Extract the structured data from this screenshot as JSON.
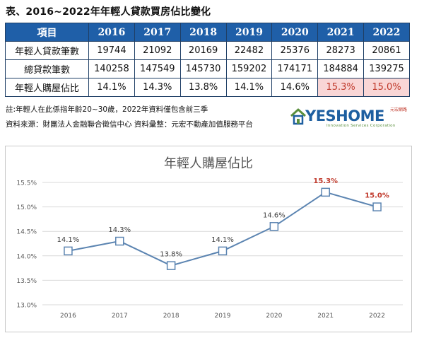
{
  "page_title": "表、2016~2022年年輕人貸款買房佔比變化",
  "table": {
    "header": [
      "項目",
      "2016",
      "2017",
      "2018",
      "2019",
      "2020",
      "2021",
      "2022"
    ],
    "rows": [
      {
        "label": "年輕人貸款筆數",
        "values": [
          "19744",
          "21092",
          "20169",
          "22482",
          "25376",
          "28273",
          "20861"
        ]
      },
      {
        "label": "總貸款筆數",
        "values": [
          "140258",
          "147549",
          "145730",
          "159202",
          "174171",
          "184884",
          "139275"
        ]
      },
      {
        "label": "年輕人購屋佔比",
        "values": [
          "14.1%",
          "14.3%",
          "13.8%",
          "14.1%",
          "14.6%",
          "15.3%",
          "15.0%"
        ]
      }
    ],
    "highlight_color": "#f9d6d6"
  },
  "note": "註:年輕人在此係指年齡20~30歲，2022年資料僅包含前三季",
  "source": "資料來源：財團法人金融聯合徵信中心  資料彙整：元宏不動產加值服務平台",
  "logo": {
    "brand": "YESHOME",
    "small_text": "元宏網路",
    "tagline": "Innovation Services Corporation",
    "color": "#1e5fa0",
    "icon": "house-icon"
  },
  "chart_data": {
    "type": "line",
    "title": "年輕人購屋佔比",
    "categories": [
      "2016",
      "2017",
      "2018",
      "2019",
      "2020",
      "2021",
      "2022"
    ],
    "values": [
      14.1,
      14.3,
      13.8,
      14.1,
      14.6,
      15.3,
      15.0
    ],
    "labels": [
      "14.1%",
      "14.3%",
      "13.8%",
      "14.1%",
      "14.6%",
      "15.3%",
      "15.0%"
    ],
    "highlight_index": [
      5,
      6
    ],
    "highlight_color": "#c0392b",
    "ylim": [
      13.0,
      15.5
    ],
    "yticks": [
      "13.0%",
      "13.5%",
      "14.0%",
      "14.5%",
      "15.0%",
      "15.5%"
    ],
    "ytick_values": [
      13.0,
      13.5,
      14.0,
      14.5,
      15.0,
      15.5
    ],
    "grid": true,
    "line_color": "#5b84b1",
    "xlabel": "",
    "ylabel": ""
  }
}
